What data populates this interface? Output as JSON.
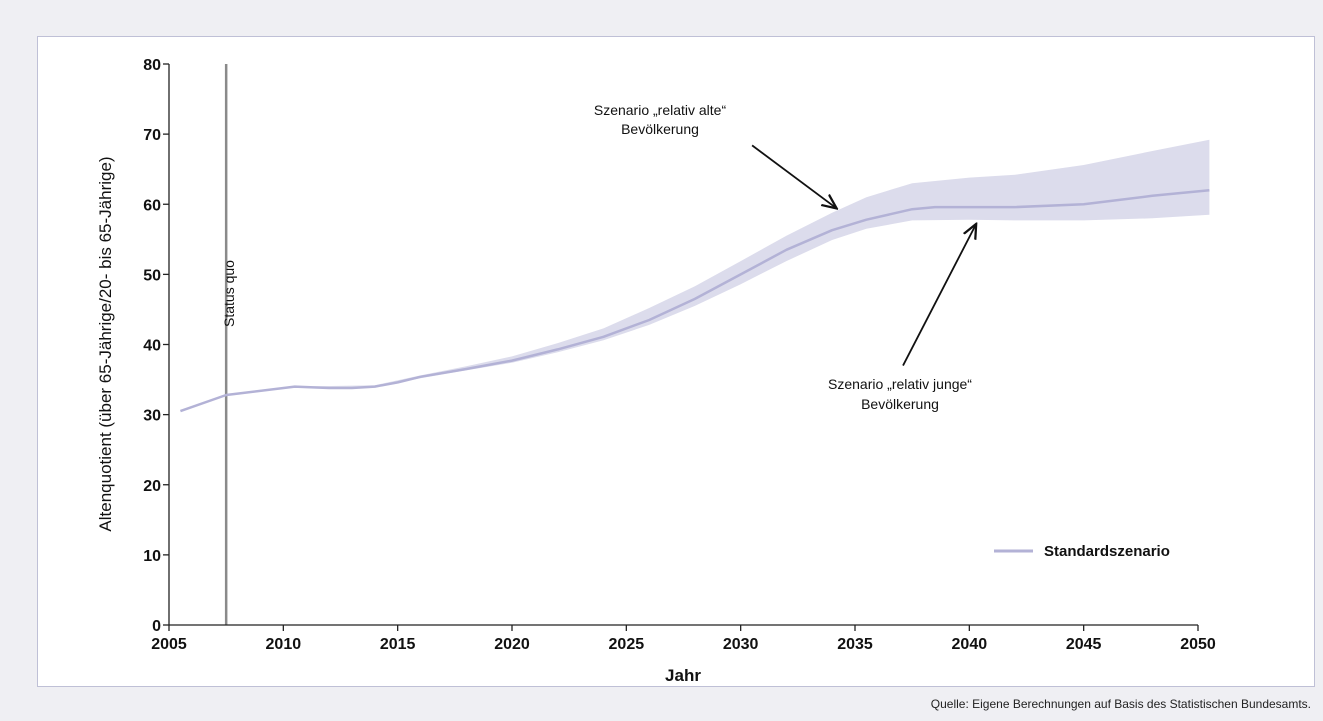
{
  "chart_data": {
    "type": "area",
    "xlabel": "Jahr",
    "ylabel": "Altenquotient (über 65-Jährige/20- bis 65-Jährige)",
    "xlim": [
      2005,
      2050
    ],
    "ylim": [
      0,
      80
    ],
    "x_ticks": [
      2005,
      2010,
      2015,
      2020,
      2025,
      2030,
      2035,
      2040,
      2045,
      2050
    ],
    "y_ticks": [
      0,
      10,
      20,
      30,
      40,
      50,
      60,
      70,
      80
    ],
    "grid": false,
    "legend": {
      "position": "bottom-right",
      "entries": [
        "Standardszenario"
      ]
    },
    "series": [
      {
        "name": "Standardszenario",
        "color": "#b3b2d6",
        "x": [
          2005.5,
          2007.5,
          2008,
          2010.5,
          2012,
          2013,
          2014,
          2015,
          2016,
          2018,
          2020,
          2022,
          2024,
          2026,
          2028,
          2030,
          2032,
          2034,
          2035.5,
          2037.5,
          2038.5,
          2040,
          2042,
          2045,
          2048,
          2050.5
        ],
        "y": [
          30.5,
          32.8,
          33.0,
          34.0,
          33.8,
          33.8,
          34.0,
          34.6,
          35.4,
          36.5,
          37.7,
          39.3,
          41.1,
          43.5,
          46.5,
          50.0,
          53.5,
          56.3,
          57.8,
          59.3,
          59.6,
          59.6,
          59.6,
          60.0,
          61.2,
          62.0
        ]
      }
    ],
    "band": {
      "color": "#dcdcec",
      "upper_label": [
        "Szenario „relativ alte“",
        "Bevölkerung"
      ],
      "lower_label": [
        "Szenario „relativ junge“",
        "Bevölkerung"
      ],
      "x": [
        2005.5,
        2007.5,
        2010.5,
        2014,
        2016,
        2018,
        2020,
        2022,
        2024,
        2026,
        2028,
        2030,
        2032,
        2034,
        2035.5,
        2037.5,
        2040,
        2042,
        2045,
        2048,
        2050.5
      ],
      "upper": [
        30.5,
        32.8,
        34.0,
        34.2,
        35.6,
        36.9,
        38.3,
        40.2,
        42.3,
        45.2,
        48.3,
        51.9,
        55.5,
        58.8,
        61.0,
        63.0,
        63.8,
        64.2,
        65.6,
        67.6,
        69.2
      ],
      "lower": [
        30.5,
        32.8,
        34.0,
        33.9,
        35.2,
        36.3,
        37.4,
        38.9,
        40.6,
        42.8,
        45.5,
        48.6,
        51.9,
        54.9,
        56.5,
        57.7,
        57.8,
        57.7,
        57.7,
        58.0,
        58.5
      ]
    },
    "annotations": [
      {
        "text": "Status quo",
        "type": "vline",
        "x": 2007.5
      },
      {
        "type": "arrow",
        "from": [
          2030.5,
          68.4
        ],
        "to": [
          2034.2,
          59.4
        ]
      },
      {
        "type": "arrow",
        "from": [
          2037.1,
          37.0
        ],
        "to": [
          2040.3,
          57.2
        ]
      }
    ]
  },
  "source": "Quelle: Eigene Berechnungen auf Basis des Statistischen Bundesamts."
}
